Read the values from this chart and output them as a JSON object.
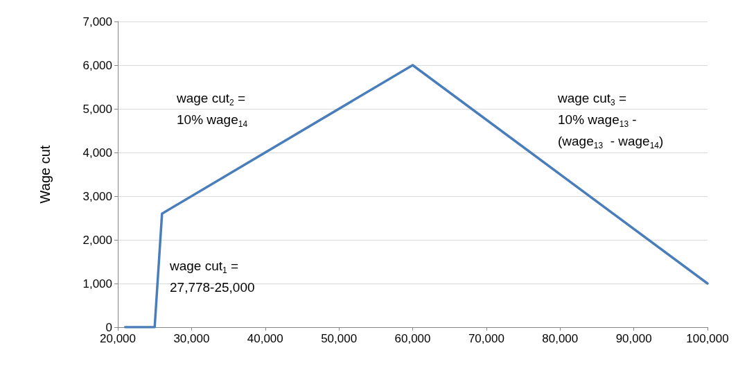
{
  "chart_data": {
    "type": "line",
    "ylabel": "Wage cut",
    "x": [
      21000,
      25000,
      26000,
      60000,
      100000
    ],
    "series": [
      {
        "color": "#4a7ebb",
        "values": [
          0,
          0,
          2600,
          6000,
          1000
        ]
      }
    ],
    "xlim": [
      20000,
      100000
    ],
    "xticks": [
      {
        "value": 20000,
        "label": "20,000"
      },
      {
        "value": 30000,
        "label": "30,000"
      },
      {
        "value": 40000,
        "label": "40,000"
      },
      {
        "value": 50000,
        "label": "50,000"
      },
      {
        "value": 60000,
        "label": "60,000"
      },
      {
        "value": 70000,
        "label": "70,000"
      },
      {
        "value": 80000,
        "label": "80,000"
      },
      {
        "value": 90000,
        "label": "90,000"
      },
      {
        "value": 100000,
        "label": "100,000"
      }
    ],
    "ylim": [
      0,
      7000
    ],
    "yticks": [
      0,
      {
        "value": 1000,
        "label": "1,000"
      },
      {
        "value": 2000,
        "label": "2,000"
      },
      {
        "value": 3000,
        "label": "3,000"
      },
      {
        "value": 4000,
        "label": "4,000"
      },
      {
        "value": 5000,
        "label": "5,000"
      },
      {
        "value": 6000,
        "label": "6,000"
      },
      {
        "value": 7000,
        "label": "7,000"
      }
    ],
    "grid": "y",
    "marker": "none",
    "line_style": "solid",
    "annotations": [
      "wage cut$_{1}$ =\n27,778-25,000",
      "wage cut$_{2}$ =\n10% wage$_{14}$",
      "wage cut$_{3}$ =\n10% wage$_{13}$ -\n(wage$_{13}$  - wage$_{14}$)"
    ]
  }
}
